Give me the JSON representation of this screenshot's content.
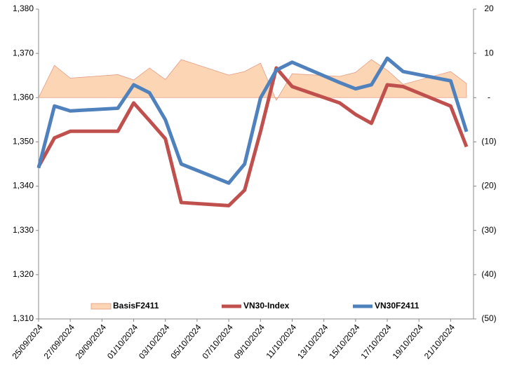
{
  "chart_data": {
    "type": "line",
    "x": [
      "25/09/2024",
      "26/09/2024",
      "27/09/2024",
      "30/09/2024",
      "01/10/2024",
      "02/10/2024",
      "03/10/2024",
      "04/10/2024",
      "07/10/2024",
      "08/10/2024",
      "09/10/2024",
      "10/10/2024",
      "11/10/2024",
      "14/10/2024",
      "15/10/2024",
      "16/10/2024",
      "17/10/2024",
      "18/10/2024",
      "21/10/2024",
      "22/10/2024"
    ],
    "series": [
      {
        "name": "BasisF2411",
        "type": "area",
        "axis": "y2",
        "color": "#fcd5b4",
        "edge_color": "#e39c84",
        "values": [
          0,
          7.3,
          4.4,
          5.2,
          4.0,
          6.7,
          4.1,
          8.6,
          5.1,
          5.9,
          7.8,
          -0.6,
          5.4,
          4.8,
          5.7,
          8.6,
          6.2,
          3.0,
          5.9,
          3.2
        ]
      },
      {
        "name": "VN30-Index",
        "type": "line",
        "color": "#c0504d",
        "values": [
          1344.4,
          1350.9,
          1352.4,
          1352.4,
          1358.8,
          1354.8,
          1350.7,
          1336.3,
          1335.6,
          1339.1,
          1352.3,
          1366.7,
          1362.5,
          1358.8,
          1356.2,
          1354.2,
          1362.9,
          1362.5,
          1358.1,
          1348.9
        ]
      },
      {
        "name": "VN30F2411",
        "type": "line",
        "color": "#4f81bd",
        "values": [
          1344.1,
          1358.1,
          1357.0,
          1357.6,
          1362.9,
          1361.1,
          1355.0,
          1345.0,
          1340.7,
          1345.0,
          1359.9,
          1366.2,
          1368.0,
          1363.4,
          1362.0,
          1362.9,
          1368.9,
          1365.9,
          1363.8,
          1352.3
        ]
      }
    ],
    "xlim": [
      "25/09/2024",
      "22/10/2024"
    ],
    "xticks": [
      "25/09/2024",
      "27/09/2024",
      "29/09/2024",
      "01/10/2024",
      "03/10/2024",
      "05/10/2024",
      "07/10/2024",
      "09/10/2024",
      "11/10/2024",
      "13/10/2024",
      "15/10/2024",
      "17/10/2024",
      "19/10/2024",
      "21/10/2024"
    ],
    "ylim": [
      1310,
      1380
    ],
    "yticks": [
      {
        "value": 1310,
        "label": "1,310"
      },
      {
        "value": 1320,
        "label": "1,320"
      },
      {
        "value": 1330,
        "label": "1,330"
      },
      {
        "value": 1340,
        "label": "1,340"
      },
      {
        "value": 1350,
        "label": "1,350"
      },
      {
        "value": 1360,
        "label": "1,360"
      },
      {
        "value": 1370,
        "label": "1,370"
      },
      {
        "value": 1380,
        "label": "1,380"
      }
    ],
    "y2lim": [
      -50,
      20
    ],
    "y2ticks": [
      {
        "value": -50,
        "label": "(50)"
      },
      {
        "value": -40,
        "label": "(40)"
      },
      {
        "value": -30,
        "label": "(30)"
      },
      {
        "value": -20,
        "label": "(20)"
      },
      {
        "value": -10,
        "label": "(10)"
      },
      {
        "value": 0,
        "label": "-"
      },
      10,
      20
    ],
    "legend": "bottom"
  }
}
